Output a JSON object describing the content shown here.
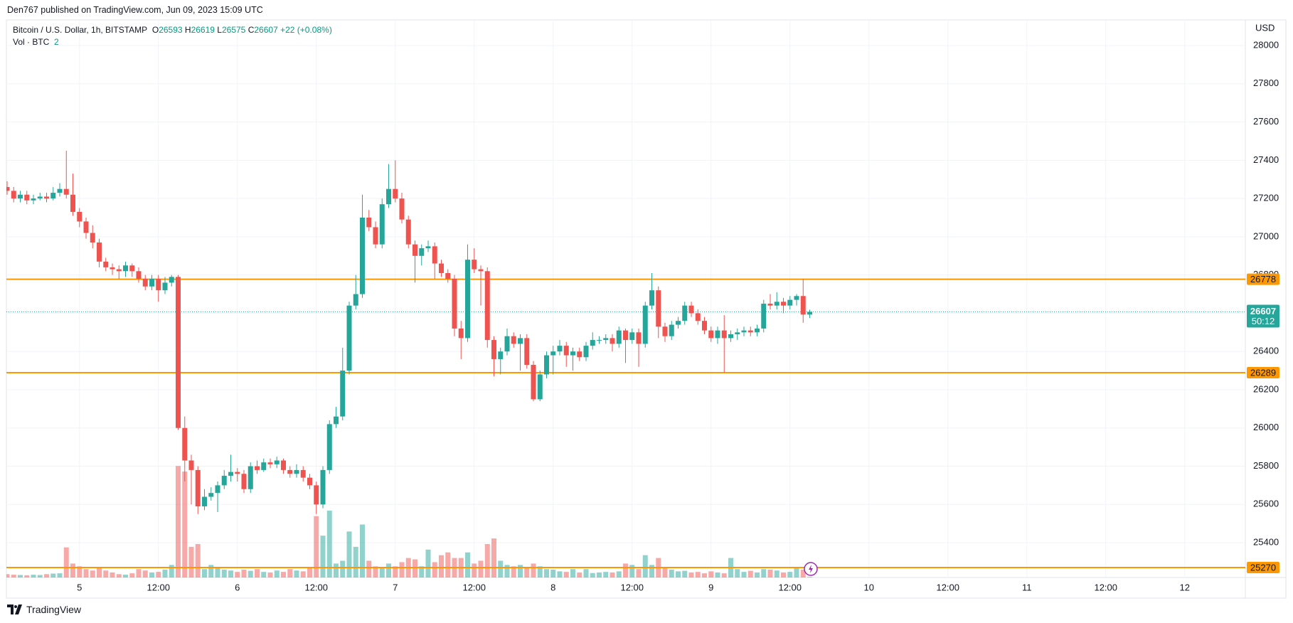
{
  "header": "Den767 published on TradingView.com, Jun 09, 2023 15:09 UTC",
  "footer": "TradingView",
  "chart_data": {
    "type": "candlestick",
    "symbol": "Bitcoin / U.S. Dollar, 1h, BITSTAMP",
    "ohlc_legend": [
      {
        "label": "O",
        "value": 26593
      },
      {
        "label": "H",
        "value": 26619
      },
      {
        "label": "L",
        "value": 26575
      },
      {
        "label": "C",
        "value": 26607
      }
    ],
    "change": {
      "value": 22,
      "label": "+22"
    },
    "change_pct": {
      "value": 0.08,
      "label": "(+0.08%)"
    },
    "volume_legend": {
      "label": "Vol · BTC",
      "value": 2
    },
    "currency": "USD",
    "categories": [
      null,
      null,
      null,
      null,
      null,
      null,
      null,
      null,
      null,
      null,
      null,
      "5",
      null,
      null,
      null,
      null,
      null,
      null,
      null,
      null,
      null,
      null,
      null,
      "12:00",
      null,
      null,
      null,
      null,
      null,
      null,
      null,
      null,
      null,
      null,
      null,
      "6",
      null,
      null,
      null,
      null,
      null,
      null,
      null,
      null,
      null,
      null,
      null,
      "12:00",
      null,
      null,
      null,
      null,
      null,
      null,
      null,
      null,
      null,
      null,
      null,
      "7",
      null,
      null,
      null,
      null,
      null,
      null,
      null,
      null,
      null,
      null,
      null,
      "12:00",
      null,
      null,
      null,
      null,
      null,
      null,
      null,
      null,
      null,
      null,
      null,
      "8",
      null,
      null,
      null,
      null,
      null,
      null,
      null,
      null,
      null,
      null,
      null,
      "12:00",
      null,
      null,
      null,
      null,
      null,
      null,
      null,
      null,
      null,
      null,
      null,
      "9",
      null,
      null,
      null,
      null,
      null,
      null,
      null,
      null,
      null,
      null,
      null,
      "12:00",
      null,
      null,
      null,
      null,
      null,
      null,
      null,
      null,
      null,
      null,
      null,
      "10",
      null,
      null,
      null,
      null,
      null,
      null,
      null,
      null,
      null,
      null,
      null,
      "12:00",
      null,
      null,
      null,
      null,
      null,
      null,
      null,
      null,
      null,
      null,
      null,
      "11",
      null,
      null,
      null,
      null,
      null,
      null,
      null,
      null,
      null,
      null,
      null,
      "12:00",
      null,
      null,
      null,
      null,
      null,
      null,
      null,
      null,
      null,
      null,
      null,
      "12",
      null,
      null,
      null,
      null,
      null,
      null,
      null,
      null,
      null
    ],
    "open": [
      27260,
      27240,
      27200,
      27220,
      27190,
      27200,
      27210,
      27200,
      27230,
      27250,
      27220,
      27130,
      27080,
      27020,
      26970,
      26870,
      26840,
      26830,
      26820,
      26850,
      26820,
      26780,
      26740,
      26780,
      26720,
      26760,
      26790,
      26000,
      25830,
      25780,
      25590,
      25640,
      25660,
      25700,
      25750,
      25770,
      25760,
      25680,
      25800,
      25780,
      25820,
      25810,
      25830,
      25780,
      25760,
      25780,
      25740,
      25700,
      25600,
      25780,
      26020,
      26060,
      26300,
      26640,
      26700,
      27100,
      27050,
      26960,
      27170,
      27250,
      27200,
      27090,
      26960,
      26900,
      26940,
      26950,
      26860,
      26810,
      26780,
      26520,
      26470,
      26880,
      26830,
      26820,
      26460,
      26360,
      26400,
      26480,
      26440,
      26470,
      26330,
      26150,
      26280,
      26380,
      26400,
      26430,
      26380,
      26400,
      26370,
      26430,
      26460,
      26460,
      26470,
      26440,
      26510,
      26460,
      26500,
      26440,
      26640,
      26720,
      26530,
      26480,
      26540,
      26560,
      26640,
      26600,
      26560,
      26510,
      26470,
      26510,
      26470,
      26490,
      26500,
      26510,
      26500,
      26520,
      26650,
      26640,
      26660,
      26640,
      26670,
      26690,
      26593,
      null,
      null,
      null,
      null,
      null,
      null,
      null,
      null,
      null,
      null,
      null,
      null,
      null,
      null,
      null,
      null,
      null,
      null,
      null,
      null,
      null,
      null,
      null,
      null,
      null,
      null,
      null,
      null,
      null,
      null,
      null,
      null,
      null,
      null,
      null,
      null,
      null,
      null,
      null,
      null,
      null,
      null,
      null,
      null,
      null,
      null,
      null,
      null,
      null,
      null,
      null,
      null,
      null,
      null,
      null,
      null,
      null,
      null,
      null,
      null,
      null,
      null,
      null,
      null,
      null,
      null
    ],
    "high": [
      27290,
      27260,
      27240,
      27240,
      27220,
      27230,
      27230,
      27260,
      27280,
      27450,
      27330,
      27150,
      27100,
      27060,
      26990,
      26890,
      26860,
      26850,
      26870,
      26860,
      26840,
      26800,
      26800,
      26800,
      26790,
      26800,
      26800,
      26060,
      25860,
      25800,
      25680,
      25690,
      25720,
      25780,
      25860,
      25790,
      25780,
      25820,
      25830,
      25840,
      25840,
      25850,
      25840,
      25800,
      25810,
      25800,
      25760,
      25720,
      25800,
      26040,
      26110,
      26420,
      26660,
      26800,
      27220,
      27140,
      27080,
      27200,
      27380,
      27400,
      27230,
      27110,
      26980,
      26960,
      26980,
      26970,
      26880,
      26830,
      26800,
      26560,
      26960,
      26940,
      26850,
      26840,
      26480,
      26420,
      26520,
      26500,
      26490,
      26490,
      26350,
      26300,
      26400,
      26430,
      26460,
      26450,
      26420,
      26420,
      26450,
      26500,
      26480,
      26490,
      26490,
      26530,
      26520,
      26520,
      26520,
      26660,
      26810,
      26740,
      26550,
      26560,
      26580,
      26660,
      26660,
      26620,
      26580,
      26530,
      26530,
      26590,
      26510,
      26520,
      26530,
      26530,
      26540,
      26670,
      26700,
      26710,
      26680,
      26690,
      26700,
      26780,
      26619,
      null,
      null,
      null,
      null,
      null,
      null,
      null,
      null,
      null,
      null,
      null,
      null,
      null,
      null,
      null,
      null,
      null,
      null,
      null,
      null,
      null,
      null,
      null,
      null,
      null,
      null,
      null,
      null,
      null,
      null,
      null,
      null,
      null,
      null,
      null,
      null,
      null,
      null,
      null,
      null,
      null,
      null,
      null,
      null,
      null,
      null,
      null,
      null,
      null,
      null,
      null,
      null,
      null,
      null,
      null,
      null,
      null,
      null,
      null,
      null,
      null,
      null,
      null,
      null,
      null,
      null
    ],
    "low": [
      27220,
      27180,
      27180,
      27170,
      27170,
      27190,
      27180,
      27190,
      27210,
      27200,
      27110,
      27050,
      26990,
      26940,
      26840,
      26820,
      26800,
      26780,
      26790,
      26790,
      26760,
      26720,
      26720,
      26660,
      26700,
      26740,
      25990,
      25720,
      25600,
      25550,
      25570,
      25620,
      25560,
      25680,
      25720,
      25720,
      25660,
      25660,
      25760,
      25770,
      25790,
      25790,
      25760,
      25740,
      25740,
      25720,
      25680,
      25550,
      25580,
      25760,
      26000,
      26040,
      26280,
      26620,
      26680,
      27030,
      26940,
      26940,
      27150,
      27180,
      27070,
      26940,
      26760,
      26850,
      26920,
      26780,
      26790,
      26760,
      26480,
      26360,
      26450,
      26810,
      26640,
      26420,
      26270,
      26280,
      26380,
      26420,
      26300,
      26310,
      26140,
      26140,
      26260,
      26280,
      26380,
      26320,
      26300,
      26350,
      26350,
      26410,
      26440,
      26440,
      26400,
      26420,
      26340,
      26440,
      26320,
      26420,
      26620,
      26470,
      26450,
      26460,
      26520,
      26540,
      26580,
      26540,
      26490,
      26450,
      26440,
      26290,
      26450,
      26460,
      26480,
      26480,
      26480,
      26500,
      26620,
      26620,
      26600,
      26620,
      26640,
      26550,
      26575,
      null,
      null,
      null,
      null,
      null,
      null,
      null,
      null,
      null,
      null,
      null,
      null,
      null,
      null,
      null,
      null,
      null,
      null,
      null,
      null,
      null,
      null,
      null,
      null,
      null,
      null,
      null,
      null,
      null,
      null,
      null,
      null,
      null,
      null,
      null,
      null,
      null,
      null,
      null,
      null,
      null,
      null,
      null,
      null,
      null,
      null,
      null,
      null,
      null,
      null,
      null,
      null,
      null,
      null,
      null,
      null,
      null,
      null,
      null,
      null,
      null,
      null,
      null,
      null,
      null,
      null
    ],
    "close": [
      27240,
      27200,
      27220,
      27190,
      27200,
      27210,
      27200,
      27230,
      27250,
      27220,
      27130,
      27080,
      27020,
      26970,
      26870,
      26840,
      26830,
      26820,
      26850,
      26820,
      26780,
      26740,
      26780,
      26720,
      26760,
      26790,
      26000,
      25830,
      25780,
      25590,
      25640,
      25660,
      25700,
      25750,
      25770,
      25760,
      25680,
      25800,
      25780,
      25820,
      25810,
      25830,
      25780,
      25760,
      25780,
      25740,
      25700,
      25600,
      25780,
      26020,
      26060,
      26300,
      26640,
      26700,
      27100,
      27050,
      26960,
      27170,
      27250,
      27200,
      27090,
      26960,
      26900,
      26940,
      26950,
      26860,
      26810,
      26780,
      26520,
      26470,
      26880,
      26830,
      26820,
      26460,
      26360,
      26400,
      26480,
      26440,
      26470,
      26330,
      26150,
      26280,
      26380,
      26400,
      26430,
      26380,
      26400,
      26370,
      26430,
      26460,
      26460,
      26470,
      26440,
      26510,
      26460,
      26500,
      26440,
      26640,
      26720,
      26530,
      26480,
      26540,
      26560,
      26640,
      26600,
      26560,
      26510,
      26470,
      26510,
      26470,
      26490,
      26500,
      26510,
      26500,
      26520,
      26650,
      26640,
      26660,
      26640,
      26670,
      26690,
      26593,
      26607,
      null,
      null,
      null,
      null,
      null,
      null,
      null,
      null,
      null,
      null,
      null,
      null,
      null,
      null,
      null,
      null,
      null,
      null,
      null,
      null,
      null,
      null,
      null,
      null,
      null,
      null,
      null,
      null,
      null,
      null,
      null,
      null,
      null,
      null,
      null,
      null,
      null,
      null,
      null,
      null,
      null,
      null,
      null,
      null,
      null,
      null,
      null,
      null,
      null,
      null,
      null,
      null,
      null,
      null,
      null,
      null,
      null,
      null,
      null,
      null,
      null,
      null,
      null,
      null,
      null,
      null
    ],
    "volume": [
      12,
      10,
      9,
      8,
      10,
      9,
      12,
      14,
      15,
      108,
      50,
      40,
      30,
      25,
      35,
      25,
      18,
      12,
      10,
      15,
      30,
      25,
      18,
      20,
      28,
      45,
      400,
      380,
      110,
      120,
      30,
      45,
      35,
      28,
      25,
      20,
      28,
      24,
      30,
      20,
      18,
      25,
      20,
      30,
      25,
      22,
      35,
      220,
      150,
      240,
      50,
      60,
      165,
      110,
      190,
      60,
      40,
      35,
      50,
      40,
      55,
      70,
      65,
      40,
      100,
      55,
      80,
      90,
      70,
      70,
      90,
      50,
      60,
      120,
      140,
      60,
      45,
      40,
      45,
      35,
      50,
      40,
      30,
      28,
      22,
      20,
      30,
      18,
      30,
      16,
      18,
      20,
      18,
      22,
      50,
      45,
      30,
      80,
      45,
      70,
      35,
      28,
      22,
      24,
      18,
      20,
      15,
      22,
      18,
      15,
      70,
      30,
      20,
      24,
      18,
      30,
      28,
      25,
      18,
      20,
      35,
      28,
      2,
      null,
      null,
      null,
      null,
      null,
      null,
      null,
      null,
      null,
      null,
      null,
      null,
      null,
      null,
      null,
      null,
      null,
      null,
      null,
      null,
      null,
      null,
      null,
      null,
      null,
      null,
      null,
      null,
      null,
      null,
      null,
      null,
      null,
      null,
      null,
      null,
      null,
      null,
      null,
      null,
      null,
      null,
      null,
      null,
      null,
      null,
      null,
      null,
      null,
      null,
      null,
      null,
      null,
      null,
      null,
      null,
      null,
      null,
      null,
      null,
      null,
      null,
      null,
      null,
      null,
      null
    ],
    "up_color": "#26a69a",
    "down_color": "#ef5350",
    "ylim": [
      25218,
      28134
    ],
    "yticks": [
      25400,
      25600,
      25800,
      26000,
      26200,
      26400,
      26600,
      26800,
      27000,
      27200,
      27400,
      27600,
      27800,
      28000
    ],
    "y2lim": [
      0,
      2000
    ],
    "grid": true,
    "hlines": [
      {
        "value": 26778,
        "color": "#ff9800"
      },
      {
        "value": 26289,
        "color": "#ff9800"
      },
      {
        "value": 25270,
        "color": "#ff9800"
      }
    ],
    "last_price": {
      "value": 26607,
      "countdown": "50:12"
    }
  }
}
